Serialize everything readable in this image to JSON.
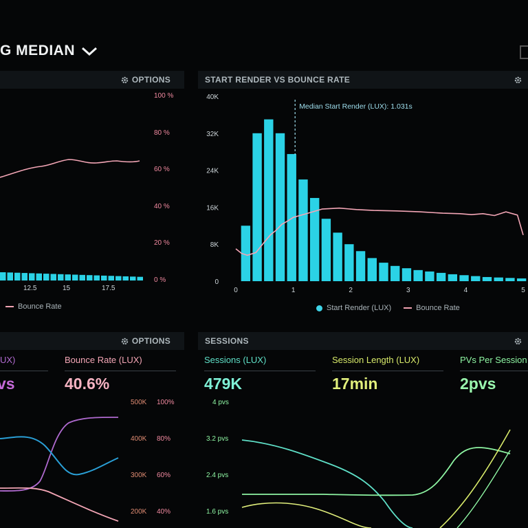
{
  "header": {
    "title": "G MEDIAN",
    "dropdown_icon": "chevron-down-icon"
  },
  "panels": {
    "top_left": {
      "options_label": "OPTIONS",
      "right_axis_ticks": [
        "100 %",
        "80 %",
        "60 %",
        "40 %",
        "20 %",
        "0 %"
      ],
      "x_ticks": [
        "12.5",
        "15",
        "17.5"
      ],
      "legend_bounce": "Bounce Rate"
    },
    "top_right": {
      "title": "START RENDER VS BOUNCE RATE",
      "annotation": "Median Start Render (LUX): 1.031s",
      "legend_start": "Start Render (LUX)",
      "legend_bounce": "Bounce Rate"
    },
    "bottom_left": {
      "options_label": "OPTIONS",
      "kpi_partial_label": "UX)",
      "kpi_partial_value": "vs",
      "kpi_bounce_label": "Bounce Rate (LUX)",
      "kpi_bounce_value": "40.6%",
      "axis_left": [
        "500K",
        "400K",
        "300K",
        "200K"
      ],
      "axis_right": [
        "100%",
        "80%",
        "60%",
        "40%"
      ]
    },
    "bottom_right": {
      "title": "SESSIONS",
      "kpis": [
        {
          "label": "Sessions (LUX)",
          "value": "479K"
        },
        {
          "label": "Session Length (LUX)",
          "value": "17min"
        },
        {
          "label": "PVs Per Session",
          "value": "2pvs"
        }
      ],
      "y_ticks": [
        "4 pvs",
        "3.2 pvs",
        "2.4 pvs",
        "1.6 pvs"
      ]
    }
  },
  "chart_data": {
    "type": "bar",
    "title": "START RENDER VS BOUNCE RATE",
    "x_ticks": [
      0,
      1,
      2,
      3,
      4,
      5
    ],
    "y_ticks": [
      "0",
      "8K",
      "16K",
      "24K",
      "32K",
      "40K"
    ],
    "ylim": [
      0,
      40000
    ],
    "xlim": [
      0,
      5
    ],
    "bin_width": 0.2,
    "series": [
      {
        "name": "Start Render (LUX)",
        "type": "bar",
        "x": [
          0.2,
          0.4,
          0.6,
          0.8,
          1.0,
          1.2,
          1.4,
          1.6,
          1.8,
          2.0,
          2.2,
          2.4,
          2.6,
          2.8,
          3.0,
          3.2,
          3.4,
          3.6,
          3.8,
          4.0,
          4.2,
          4.4,
          4.6,
          4.8,
          5.0
        ],
        "values": [
          12000,
          32000,
          35000,
          32000,
          27500,
          22000,
          18000,
          13500,
          10500,
          8000,
          6500,
          5000,
          4000,
          3300,
          2800,
          2400,
          2100,
          1800,
          1500,
          1300,
          1100,
          900,
          800,
          700,
          600
        ]
      },
      {
        "name": "Bounce Rate",
        "type": "line",
        "x": [
          0.0,
          0.1,
          0.2,
          0.35,
          0.5,
          0.6,
          0.7,
          0.8,
          0.9,
          1.0,
          1.2,
          1.5,
          1.8,
          2.1,
          2.4,
          2.8,
          3.2,
          3.6,
          3.9,
          4.1,
          4.3,
          4.5,
          4.7,
          4.9,
          5.0
        ],
        "values": [
          7000,
          6000,
          5600,
          6200,
          8500,
          10000,
          11000,
          12300,
          13000,
          13800,
          14500,
          15600,
          15800,
          15500,
          15300,
          15200,
          15000,
          14700,
          14600,
          14400,
          14600,
          14200,
          15000,
          14300,
          10000
        ]
      }
    ],
    "annotation": {
      "x": 1.031,
      "label": "Median Start Render (LUX): 1.031s"
    },
    "legend": "bottom-center",
    "grid": false,
    "colors": {
      "bars": "#2bd2e6",
      "line": "#f4a6b6",
      "annotation": "#9fdfee"
    }
  }
}
